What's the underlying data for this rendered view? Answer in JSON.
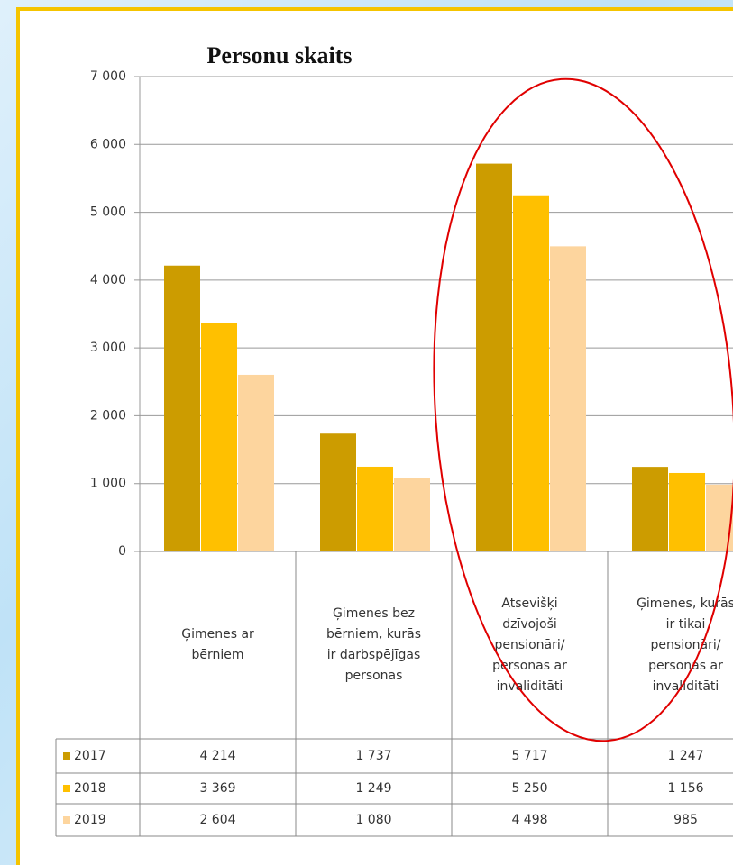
{
  "chart_data": {
    "type": "bar",
    "title": "Personu skaits",
    "categories": [
      "Ģimenes ar bērniem",
      "Ģimenes bez bērniem, kurās ir darbspējīgas personas",
      "Atsevišķi dzīvojoši pensionāri/ personas ar invaliditāti",
      "Ģimenes, kurās ir tikai pensionāri/ personas ar invaliditāti"
    ],
    "series": [
      {
        "name": "2017",
        "color": "#cc9c00",
        "values": [
          4214,
          1737,
          5717,
          1247
        ],
        "value_labels": [
          "4 214",
          "1 737",
          "5 717",
          "1 247"
        ]
      },
      {
        "name": "2018",
        "color": "#ffc000",
        "values": [
          3369,
          1249,
          5250,
          1156
        ],
        "value_labels": [
          "3 369",
          "1 249",
          "5 250",
          "1 156"
        ]
      },
      {
        "name": "2019",
        "color": "#fdd59e",
        "values": [
          2604,
          1080,
          4498,
          985
        ],
        "value_labels": [
          "2 604",
          "1 080",
          "4 498",
          "985"
        ]
      }
    ],
    "ylim": [
      0,
      7000
    ],
    "yticks": [
      0,
      {
        "value": 1000,
        "label": "1 000"
      },
      {
        "value": 2000,
        "label": "2 000"
      },
      {
        "value": 3000,
        "label": "3 000"
      },
      {
        "value": 4000,
        "label": "4 000"
      },
      {
        "value": 5000,
        "label": "5 000"
      },
      {
        "value": 6000,
        "label": "6 000"
      },
      {
        "value": 7000,
        "label": "7 000"
      }
    ],
    "grid": true
  }
}
